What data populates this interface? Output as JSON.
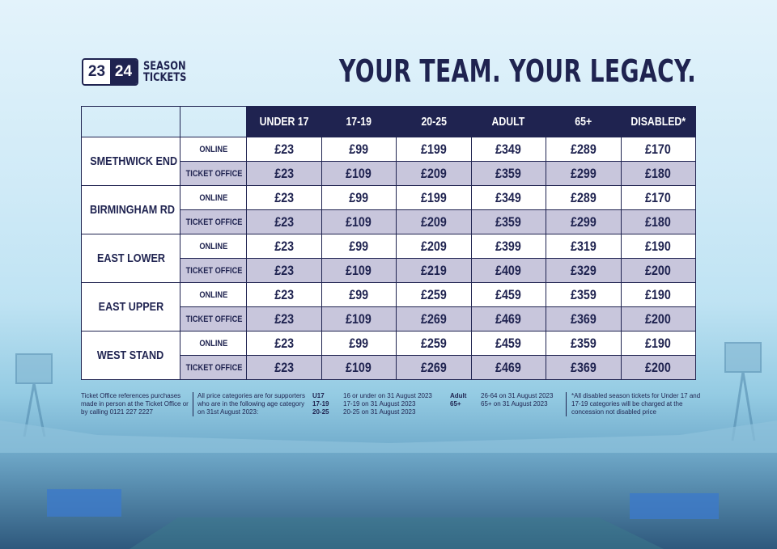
{
  "colors": {
    "navy": "#1f2350",
    "office_row": "#c8c6dc",
    "white": "#ffffff"
  },
  "logo": {
    "year1": "23",
    "year2": "24",
    "line1": "SEASON",
    "line2": "TICKETS"
  },
  "headline": "YOUR TEAM. YOUR LEGACY.",
  "table": {
    "columns": [
      "UNDER 17",
      "17-19",
      "20-25",
      "ADULT",
      "65+",
      "DISABLED*"
    ],
    "stands": [
      {
        "name": "SMETHWICK END",
        "online": {
          "label": "ONLINE",
          "prices": [
            "£23",
            "£99",
            "£199",
            "£349",
            "£289",
            "£170"
          ]
        },
        "office": {
          "label": "TICKET OFFICE",
          "prices": [
            "£23",
            "£109",
            "£209",
            "£359",
            "£299",
            "£180"
          ]
        }
      },
      {
        "name": "BIRMINGHAM RD",
        "online": {
          "label": "ONLINE",
          "prices": [
            "£23",
            "£99",
            "£199",
            "£349",
            "£289",
            "£170"
          ]
        },
        "office": {
          "label": "TICKET OFFICE",
          "prices": [
            "£23",
            "£109",
            "£209",
            "£359",
            "£299",
            "£180"
          ]
        }
      },
      {
        "name": "EAST LOWER",
        "online": {
          "label": "ONLINE",
          "prices": [
            "£23",
            "£99",
            "£209",
            "£399",
            "£319",
            "£190"
          ]
        },
        "office": {
          "label": "TICKET OFFICE",
          "prices": [
            "£23",
            "£109",
            "£219",
            "£409",
            "£329",
            "£200"
          ]
        }
      },
      {
        "name": "EAST UPPER",
        "online": {
          "label": "ONLINE",
          "prices": [
            "£23",
            "£99",
            "£259",
            "£459",
            "£359",
            "£190"
          ]
        },
        "office": {
          "label": "TICKET OFFICE",
          "prices": [
            "£23",
            "£109",
            "£269",
            "£469",
            "£369",
            "£200"
          ]
        }
      },
      {
        "name": "WEST STAND",
        "online": {
          "label": "ONLINE",
          "prices": [
            "£23",
            "£99",
            "£259",
            "£459",
            "£359",
            "£190"
          ]
        },
        "office": {
          "label": "TICKET OFFICE",
          "prices": [
            "£23",
            "£109",
            "£269",
            "£469",
            "£369",
            "£200"
          ]
        }
      }
    ]
  },
  "notes": {
    "ticket_office": "Ticket Office references purchases made in person at the Ticket Office or by calling 0121 227 2227",
    "categories_intro": "All price categories are for supporters who are in the following age category on 31st August 2023:",
    "age_left": [
      {
        "code": "U17",
        "desc": "16 or under on 31 August 2023"
      },
      {
        "code": "17-19",
        "desc": "17-19 on 31 August 2023"
      },
      {
        "code": "20-25",
        "desc": "20-25 on 31 August 2023"
      }
    ],
    "age_right": [
      {
        "code": "Adult",
        "desc": "26-64 on 31 August 2023"
      },
      {
        "code": "65+",
        "desc": "65+ on 31 August 2023"
      }
    ],
    "disabled": "*All disabled season tickets for Under 17 and 17-19 categories will be charged at the concession not disabled price"
  }
}
